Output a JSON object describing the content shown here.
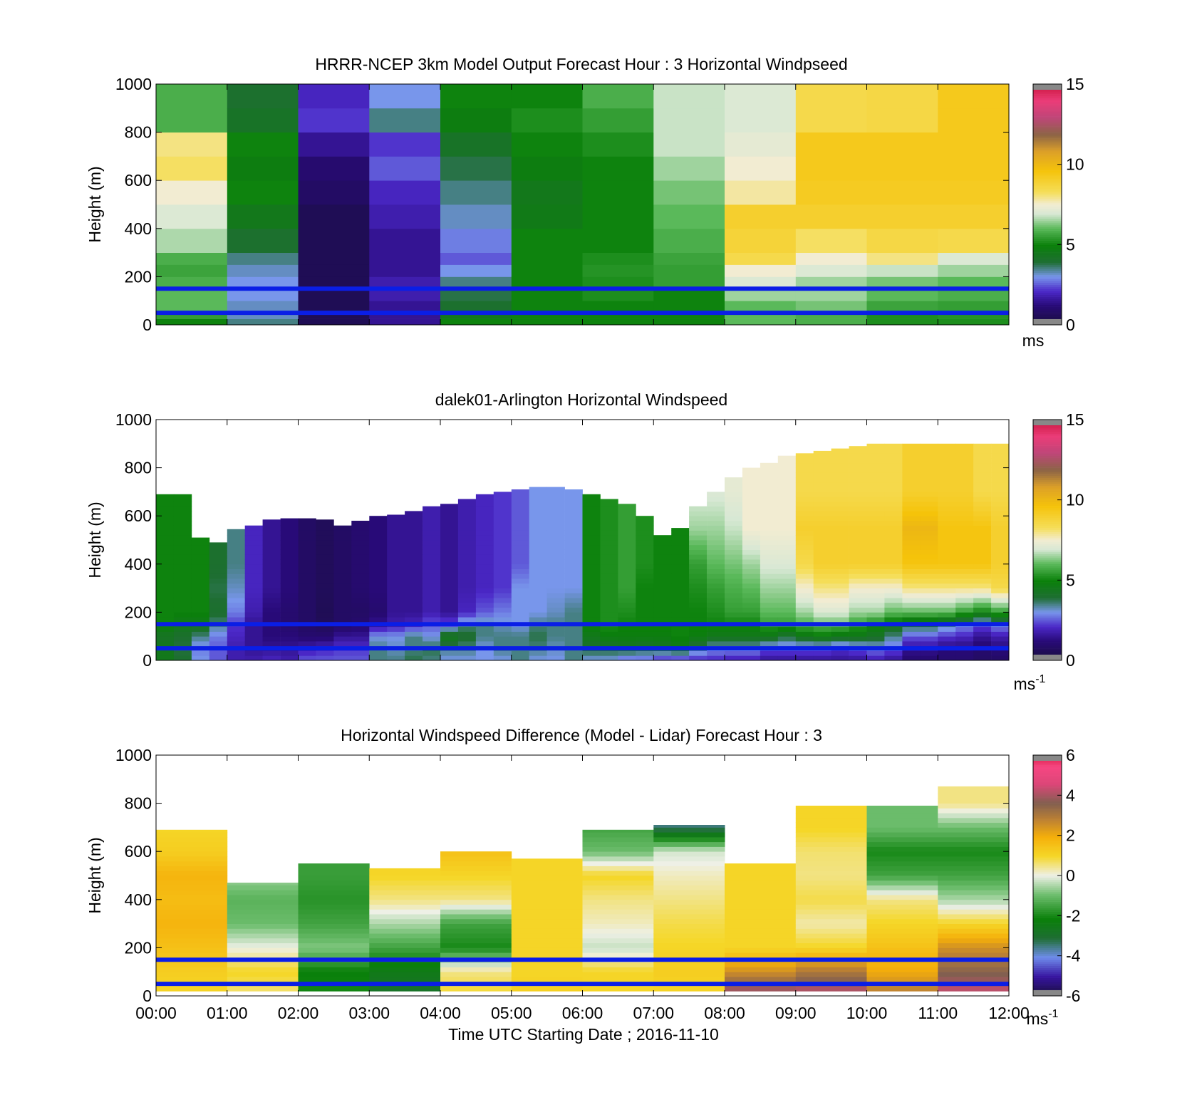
{
  "figure": {
    "xlabel": "Time UTC  Starting Date ; 2016-11-10"
  },
  "chart_data": [
    {
      "type": "heatmap",
      "title": "HRRR-NCEP 3km Model Output   Forecast Hour : 3 Horizontal Windpseed",
      "ylabel": "Height (m)",
      "ylim": [
        0,
        1000
      ],
      "yticks": [
        "0",
        "200",
        "400",
        "600",
        "800",
        "1000"
      ],
      "xlim_hours": [
        0,
        12
      ],
      "colorbar": {
        "min": 0,
        "max": 15,
        "ticks": [
          "0",
          "5",
          "10",
          "15"
        ],
        "unit": "ms",
        "colormap": "windspeed"
      },
      "reference_lines_m": [
        50,
        150
      ],
      "columns_hour": [
        0,
        1,
        2,
        3,
        4,
        5,
        6,
        7,
        8,
        9,
        10,
        11
      ],
      "levels_m": [
        0,
        25,
        50,
        100,
        150,
        200,
        250,
        300,
        400,
        500,
        600,
        700,
        800,
        900,
        1000
      ],
      "values": [
        [
          5.0,
          5.5,
          6.0,
          6.0,
          5.8,
          5.6,
          5.8,
          6.6,
          7.0,
          7.5,
          8.2,
          8.0,
          5.8,
          5.8
        ],
        [
          3.5,
          3.2,
          3.2,
          3.0,
          3.0,
          3.2,
          3.5,
          4.0,
          4.5,
          5.0,
          4.8,
          5.0,
          4.2,
          4.0
        ],
        [
          0.5,
          0.5,
          0.5,
          0.5,
          0.5,
          0.5,
          0.5,
          0.5,
          0.5,
          0.8,
          1.0,
          1.5,
          2.2,
          2.0
        ],
        [
          1.5,
          1.5,
          1.5,
          1.8,
          1.8,
          1.5,
          1.5,
          1.5,
          1.8,
          2.0,
          2.5,
          2.2,
          3.5,
          3.0
        ],
        [
          5.0,
          4.5,
          4.0,
          3.8,
          3.5,
          3.0,
          2.5,
          2.8,
          3.2,
          3.5,
          3.8,
          4.2,
          4.8,
          5.0
        ],
        [
          5.0,
          5.0,
          5.0,
          5.0,
          5.0,
          5.0,
          5.0,
          5.0,
          4.6,
          4.5,
          4.8,
          5.0,
          5.2,
          5.0
        ],
        [
          5.0,
          5.0,
          5.0,
          5.2,
          5.2,
          5.3,
          5.2,
          5.0,
          5.0,
          5.0,
          5.0,
          5.2,
          5.5,
          5.8
        ],
        [
          5.0,
          5.0,
          5.0,
          5.0,
          5.5,
          5.5,
          5.6,
          5.8,
          6.0,
          6.2,
          6.5,
          6.8,
          6.8,
          6.8
        ],
        [
          6.0,
          6.0,
          6.0,
          6.5,
          7.0,
          7.5,
          8.5,
          8.8,
          9.0,
          7.8,
          7.5,
          7.2,
          7.0,
          7.0
        ],
        [
          5.8,
          5.8,
          6.2,
          6.5,
          6.5,
          7.0,
          7.5,
          8.2,
          9.0,
          9.2,
          9.3,
          9.3,
          8.5,
          8.5
        ],
        [
          5.2,
          5.2,
          5.6,
          6.0,
          6.2,
          6.8,
          8.0,
          8.6,
          9.0,
          9.2,
          9.3,
          9.3,
          8.6,
          8.6
        ],
        [
          5.2,
          5.3,
          5.5,
          5.8,
          6.0,
          6.5,
          7.0,
          8.5,
          9.0,
          9.2,
          9.3,
          9.3,
          9.3,
          9.3
        ]
      ]
    },
    {
      "type": "heatmap",
      "title": "dalek01-Arlington  Horizontal Windspeed",
      "ylabel": "Height (m)",
      "ylim": [
        0,
        1000
      ],
      "yticks": [
        "0",
        "200",
        "400",
        "600",
        "800",
        "1000"
      ],
      "xlim_hours": [
        0,
        12
      ],
      "colorbar": {
        "min": 0,
        "max": 15,
        "ticks": [
          "0",
          "5",
          "10",
          "15"
        ],
        "unit": "ms",
        "unit_exponent": "-1",
        "colormap": "windspeed"
      },
      "reference_lines_m": [
        50,
        150
      ],
      "time_step_hours": 0.25,
      "gate_spacing_m": 20,
      "top_of_data_m": [
        690,
        690,
        510,
        490,
        545,
        560,
        585,
        590,
        590,
        585,
        560,
        580,
        600,
        605,
        620,
        640,
        650,
        670,
        690,
        700,
        710,
        720,
        720,
        710,
        690,
        670,
        650,
        600,
        520,
        550,
        640,
        700,
        760,
        800,
        820,
        850,
        860,
        870,
        880,
        890,
        900,
        900,
        900,
        900,
        900,
        900,
        900,
        900
      ],
      "profile_by_column": [
        [
          4.5,
          4.5,
          4.2,
          5.0,
          5.0,
          5.0,
          5.0,
          5.0,
          5.0
        ],
        [
          4.0,
          3.8,
          4.0,
          4.5,
          5.0,
          5.0,
          5.0,
          5.0,
          5.0
        ],
        [
          3.0,
          2.8,
          3.5,
          4.5,
          5.0,
          5.0,
          5.0,
          5.0,
          5.0
        ],
        [
          2.5,
          2.5,
          2.8,
          3.5,
          4.0,
          3.8,
          4.0,
          4.0,
          4.0
        ],
        [
          1.8,
          1.8,
          2.0,
          2.2,
          2.8,
          3.2,
          3.5,
          3.5,
          3.5
        ],
        [
          1.8,
          1.5,
          1.5,
          1.5,
          1.8,
          2.0,
          2.0,
          2.0,
          2.0
        ],
        [
          2.0,
          1.5,
          1.2,
          1.2,
          1.2,
          1.5,
          1.5,
          1.5,
          1.5
        ],
        [
          1.8,
          1.5,
          1.2,
          1.0,
          1.0,
          1.2,
          1.2,
          1.2,
          1.2
        ],
        [
          2.5,
          1.8,
          1.0,
          0.8,
          0.8,
          0.8,
          0.8,
          0.8,
          0.8
        ],
        [
          2.5,
          2.0,
          1.0,
          0.6,
          0.5,
          0.6,
          0.6,
          0.6,
          0.6
        ],
        [
          2.5,
          2.2,
          1.5,
          0.8,
          0.8,
          0.8,
          0.8,
          0.8,
          0.8
        ],
        [
          2.5,
          2.2,
          1.5,
          1.0,
          0.8,
          1.0,
          1.0,
          1.0,
          1.0
        ],
        [
          3.5,
          3.5,
          3.0,
          1.5,
          1.0,
          1.2,
          1.2,
          1.2,
          1.2
        ],
        [
          3.5,
          3.2,
          3.0,
          1.8,
          1.5,
          1.5,
          1.5,
          1.5,
          1.5
        ],
        [
          3.8,
          3.5,
          3.5,
          2.0,
          1.5,
          1.5,
          1.5,
          1.5,
          1.5
        ],
        [
          3.5,
          3.8,
          3.0,
          2.5,
          1.8,
          1.8,
          1.8,
          1.8,
          1.8
        ],
        [
          3.0,
          3.5,
          4.5,
          2.5,
          1.5,
          1.5,
          1.5,
          1.5,
          1.5
        ],
        [
          3.0,
          3.5,
          4.0,
          3.5,
          2.0,
          1.8,
          1.8,
          1.8,
          1.8
        ],
        [
          3.0,
          3.0,
          3.5,
          3.5,
          2.5,
          2.0,
          2.0,
          2.0,
          2.0
        ],
        [
          3.0,
          3.5,
          3.5,
          3.2,
          2.8,
          2.2,
          2.2,
          2.2,
          2.2
        ],
        [
          3.5,
          3.5,
          3.5,
          3.0,
          3.0,
          3.0,
          2.5,
          2.5,
          2.5
        ],
        [
          3.0,
          3.5,
          3.8,
          3.5,
          3.0,
          3.0,
          3.0,
          3.0,
          3.0
        ],
        [
          3.0,
          3.2,
          3.5,
          3.5,
          3.2,
          3.0,
          3.0,
          3.0,
          3.0
        ],
        [
          3.5,
          3.5,
          3.5,
          3.5,
          3.5,
          3.0,
          3.0,
          3.0,
          3.0
        ],
        [
          3.0,
          4.0,
          4.5,
          5.0,
          5.0,
          5.0,
          5.0,
          5.0,
          5.0
        ],
        [
          3.0,
          4.0,
          4.8,
          5.2,
          5.2,
          5.2,
          5.2,
          5.2,
          5.2
        ],
        [
          2.5,
          4.2,
          4.8,
          5.0,
          5.2,
          5.5,
          5.5,
          5.5,
          5.5
        ],
        [
          2.5,
          4.0,
          4.8,
          5.0,
          5.0,
          5.0,
          5.2,
          5.2,
          5.2
        ],
        [
          2.0,
          4.2,
          4.8,
          5.0,
          5.0,
          5.0,
          5.0,
          5.0,
          5.0
        ],
        [
          2.0,
          4.5,
          5.0,
          5.0,
          5.0,
          5.0,
          5.0,
          5.0,
          5.0
        ],
        [
          2.0,
          3.5,
          4.8,
          5.0,
          5.0,
          5.2,
          5.5,
          6.5,
          7.0
        ],
        [
          2.0,
          3.0,
          4.5,
          5.0,
          5.2,
          5.5,
          6.0,
          6.5,
          7.0
        ],
        [
          1.8,
          3.0,
          4.5,
          5.0,
          5.5,
          5.8,
          6.2,
          6.8,
          7.2
        ],
        [
          1.8,
          3.0,
          4.5,
          5.0,
          5.5,
          6.0,
          6.5,
          7.5,
          7.5
        ],
        [
          1.5,
          2.5,
          4.5,
          5.5,
          6.0,
          6.5,
          7.0,
          7.5,
          7.5
        ],
        [
          1.5,
          2.5,
          4.0,
          5.5,
          6.0,
          6.5,
          7.0,
          7.5,
          7.5
        ],
        [
          1.5,
          2.5,
          4.5,
          5.8,
          6.5,
          7.5,
          8.5,
          9.0,
          8.5
        ],
        [
          1.5,
          2.5,
          4.8,
          6.0,
          7.0,
          8.0,
          9.0,
          9.0,
          8.5
        ],
        [
          1.5,
          2.2,
          4.5,
          6.0,
          7.0,
          8.0,
          9.0,
          9.0,
          8.5
        ],
        [
          1.5,
          2.5,
          4.5,
          5.5,
          6.5,
          7.5,
          9.0,
          9.0,
          8.5
        ],
        [
          1.8,
          2.8,
          4.2,
          5.0,
          6.5,
          7.5,
          9.0,
          9.0,
          8.5
        ],
        [
          1.5,
          2.5,
          3.5,
          4.5,
          6.0,
          7.5,
          9.0,
          9.0,
          8.5
        ],
        [
          1.0,
          1.5,
          2.5,
          4.0,
          6.0,
          8.0,
          9.5,
          10.0,
          9.0
        ],
        [
          1.0,
          1.5,
          2.5,
          4.0,
          6.0,
          8.0,
          9.5,
          10.0,
          9.0
        ],
        [
          1.0,
          1.2,
          2.2,
          3.5,
          6.0,
          8.0,
          9.5,
          9.5,
          9.0
        ],
        [
          1.0,
          1.2,
          2.0,
          3.0,
          5.5,
          8.0,
          9.5,
          9.5,
          9.0
        ],
        [
          0.8,
          1.0,
          1.5,
          2.5,
          5.0,
          8.0,
          9.5,
          9.5,
          8.5
        ],
        [
          0.8,
          1.2,
          1.8,
          3.0,
          5.5,
          8.5,
          9.0,
          9.0,
          8.5
        ]
      ]
    },
    {
      "type": "heatmap",
      "title": "Horizontal Windspeed Difference (Model - Lidar) Forecast Hour : 3",
      "ylabel": "Height (m)",
      "ylim": [
        0,
        1000
      ],
      "yticks": [
        "0",
        "200",
        "400",
        "600",
        "800",
        "1000"
      ],
      "xlim_hours": [
        0,
        12
      ],
      "xticks": [
        "00:00",
        "01:00",
        "02:00",
        "03:00",
        "04:00",
        "05:00",
        "06:00",
        "07:00",
        "08:00",
        "09:00",
        "10:00",
        "11:00",
        "12:00"
      ],
      "colorbar": {
        "min": -6,
        "max": 6,
        "ticks": [
          "-6",
          "-4",
          "-2",
          "0",
          "2",
          "4",
          "6"
        ],
        "unit": "ms",
        "unit_exponent": "-1",
        "colormap": "difference"
      },
      "reference_lines_m": [
        50,
        150
      ],
      "top_of_data_m": [
        690,
        470,
        550,
        530,
        600,
        570,
        690,
        710,
        550,
        790,
        790,
        870
      ],
      "levels_m": [
        0,
        100,
        200,
        300,
        400,
        500,
        600,
        700,
        800,
        900
      ],
      "values": [
        [
          1.0,
          1.2,
          1.5,
          1.8,
          1.6,
          1.8,
          1.2,
          1.0,
          1.0,
          1.0
        ],
        [
          0.5,
          1.0,
          0.0,
          -1.0,
          -1.2,
          -0.6,
          -0.6,
          -0.6,
          -0.6,
          -0.6
        ],
        [
          -2.0,
          -2.2,
          -0.8,
          -1.5,
          -1.8,
          -1.6,
          -1.6,
          -1.6,
          -1.6,
          -1.6
        ],
        [
          -3.0,
          -2.5,
          -1.5,
          -0.5,
          0.5,
          1.0,
          1.0,
          1.0,
          1.0,
          1.0
        ],
        [
          1.0,
          0.5,
          -2.0,
          -1.5,
          0.5,
          1.0,
          1.5,
          1.5,
          1.5,
          1.5
        ],
        [
          1.2,
          1.0,
          1.0,
          1.0,
          1.0,
          1.0,
          1.0,
          1.0,
          1.0,
          1.0
        ],
        [
          1.0,
          1.0,
          -0.3,
          0.2,
          0.5,
          1.0,
          -1.0,
          -1.5,
          -1.5,
          -1.5
        ],
        [
          1.0,
          1.2,
          1.0,
          0.8,
          0.5,
          0.2,
          -0.2,
          -3.5,
          -3.5,
          -3.5
        ],
        [
          4.5,
          2.5,
          1.0,
          1.0,
          1.0,
          1.0,
          1.0,
          1.0,
          1.0,
          1.0
        ],
        [
          4.5,
          3.0,
          1.0,
          0.3,
          0.8,
          0.5,
          0.6,
          1.0,
          1.0,
          1.0
        ],
        [
          3.0,
          2.0,
          1.5,
          1.0,
          0.5,
          -1.5,
          -2.0,
          -1.0,
          -1.0,
          -1.0
        ],
        [
          4.5,
          3.5,
          2.5,
          1.0,
          -0.5,
          -1.5,
          -2.0,
          -1.0,
          0.5,
          0.5
        ]
      ]
    }
  ]
}
